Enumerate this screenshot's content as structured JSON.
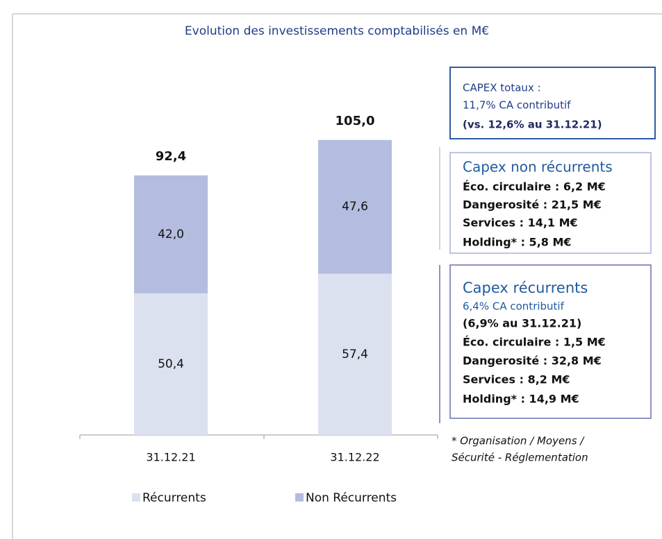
{
  "chart_data": {
    "type": "stacked_bar",
    "title": "Evolution des investissements comptabilisés en M€",
    "categories": [
      "31.12.21",
      "31.12.22"
    ],
    "series": [
      {
        "name": "Récurrents",
        "color": "#dce1f0",
        "values": [
          50.4,
          57.4
        ],
        "value_labels": [
          "50,4",
          "57,4"
        ]
      },
      {
        "name": "Non Récurrents",
        "color": "#b4bddf",
        "values": [
          42.0,
          47.6
        ],
        "value_labels": [
          "42,0",
          "47,6"
        ]
      }
    ],
    "total_labels": [
      "92,4",
      "105,0"
    ],
    "boxes": [
      {
        "lines": [
          "CAPEX totaux :",
          "11,7% CA contributif",
          "(vs. 12,6% au 31.12.21)"
        ]
      },
      {
        "lines": [
          "Capex non récurrents",
          "Éco. circulaire : 6,2 M€",
          "Dangerosité : 21,5 M€",
          "Services : 14,1 M€",
          "Holding* : 5,8 M€"
        ]
      },
      {
        "lines": [
          "Capex récurrents",
          "6,4% CA contributif",
          "(6,9% au 31.12.21)",
          "Éco. circulaire : 1,5 M€",
          "Dangerosité : 32,8 M€",
          "Services : 8,2 M€",
          "Holding* :  14,9 M€"
        ]
      }
    ],
    "footnote": [
      "* Organisation / Moyens /",
      "Sécurité - Réglementation"
    ]
  }
}
